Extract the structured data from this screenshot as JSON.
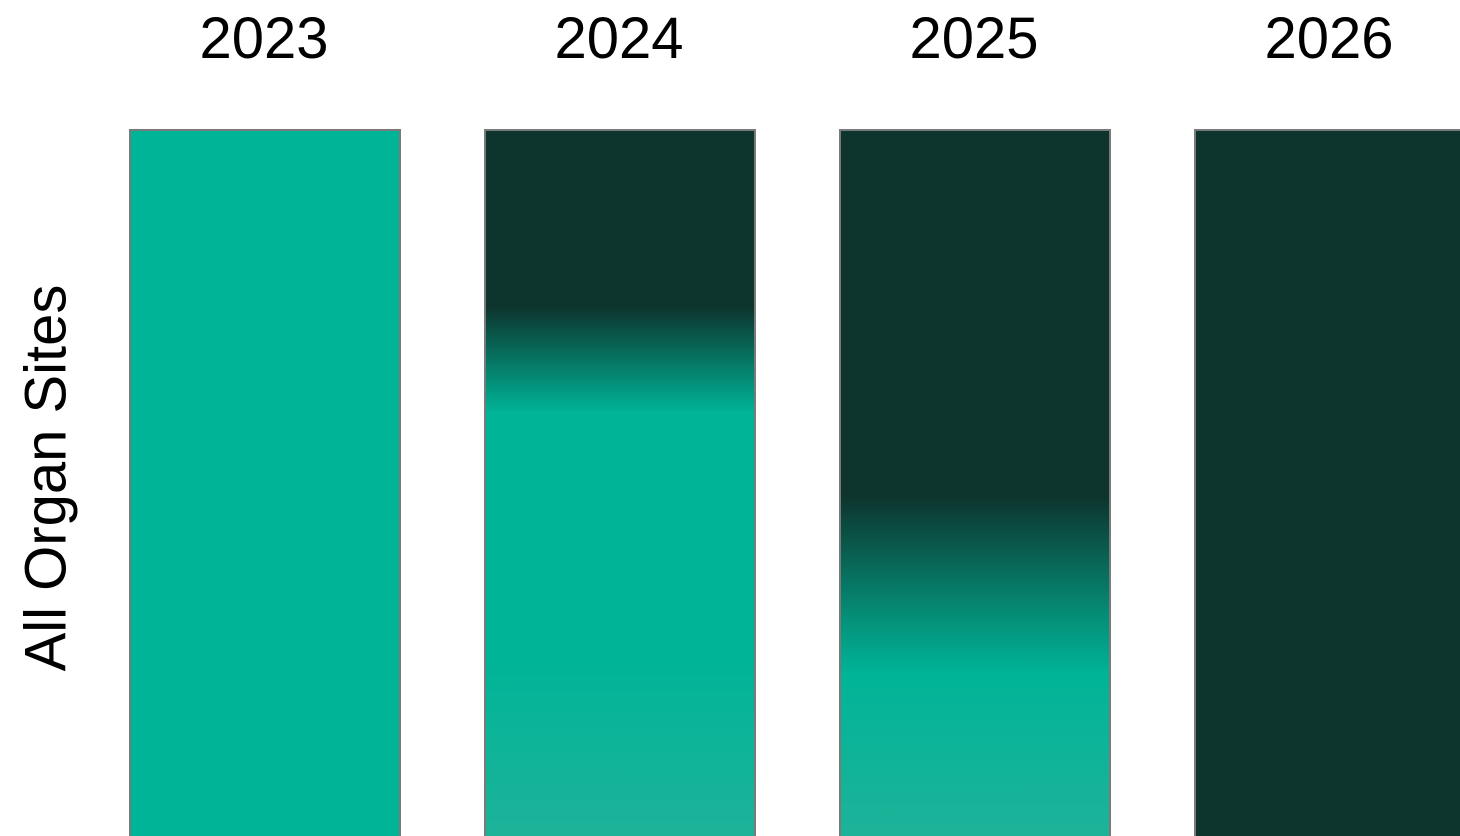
{
  "chart_data": {
    "type": "heatmap",
    "title": "",
    "row_label": "All Organ Sites",
    "columns": [
      "2023",
      "2024",
      "2025",
      "2026"
    ],
    "colors": {
      "light": "#1db399",
      "mid": "#00b497",
      "dark": "#0d352e"
    },
    "bands": [
      {
        "column": "2023",
        "stops": [
          {
            "at": 0.0,
            "color": "#00b497"
          },
          {
            "at": 1.0,
            "color": "#00b497"
          }
        ]
      },
      {
        "column": "2024",
        "stops": [
          {
            "at": 0.0,
            "color": "#0d352e"
          },
          {
            "at": 0.25,
            "color": "#0d352e"
          },
          {
            "at": 0.4,
            "color": "#00b497"
          },
          {
            "at": 0.75,
            "color": "#00b497"
          },
          {
            "at": 1.0,
            "color": "#1db399"
          }
        ]
      },
      {
        "column": "2025",
        "stops": [
          {
            "at": 0.0,
            "color": "#0d352e"
          },
          {
            "at": 0.52,
            "color": "#0d352e"
          },
          {
            "at": 0.68,
            "color": "#058a74"
          },
          {
            "at": 0.77,
            "color": "#00b497"
          },
          {
            "at": 1.0,
            "color": "#1db399"
          }
        ]
      },
      {
        "column": "2026",
        "stops": [
          {
            "at": 0.0,
            "color": "#0d352e"
          },
          {
            "at": 1.0,
            "color": "#0d352e"
          }
        ]
      }
    ]
  }
}
